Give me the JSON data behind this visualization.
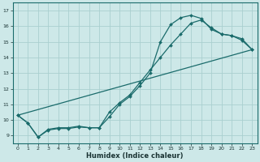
{
  "xlabel": "Humidex (Indice chaleur)",
  "xlim": [
    -0.5,
    23.5
  ],
  "ylim": [
    8.5,
    17.5
  ],
  "xticks": [
    0,
    1,
    2,
    3,
    4,
    5,
    6,
    7,
    8,
    9,
    10,
    11,
    12,
    13,
    14,
    15,
    16,
    17,
    18,
    19,
    20,
    21,
    22,
    23
  ],
  "yticks": [
    9,
    10,
    11,
    12,
    13,
    14,
    15,
    16,
    17
  ],
  "bg_color": "#cde8e8",
  "line_color": "#1a6b6b",
  "grid_color": "#aacfcf",
  "series1_x": [
    0,
    1,
    2,
    3,
    4,
    5,
    6,
    7,
    8,
    9,
    10,
    11,
    12,
    13,
    14,
    15,
    16,
    17,
    18,
    19,
    20,
    21,
    22,
    23
  ],
  "series1_y": [
    10.3,
    9.8,
    8.9,
    9.4,
    9.5,
    9.5,
    9.6,
    9.5,
    9.5,
    10.2,
    11.0,
    11.5,
    12.2,
    13.0,
    15.0,
    16.1,
    16.55,
    16.7,
    16.5,
    15.8,
    15.5,
    15.4,
    15.1,
    14.5
  ],
  "series2_x": [
    0,
    1,
    2,
    3,
    4,
    5,
    6,
    7,
    8,
    9,
    10,
    11,
    12,
    13,
    14,
    15,
    16,
    17,
    18,
    19,
    20,
    21,
    22,
    23
  ],
  "series2_y": [
    10.3,
    9.8,
    8.9,
    9.35,
    9.45,
    9.45,
    9.55,
    9.5,
    9.5,
    10.5,
    11.1,
    11.6,
    12.4,
    13.2,
    14.0,
    14.8,
    15.5,
    16.2,
    16.4,
    15.9,
    15.5,
    15.4,
    15.2,
    14.5
  ],
  "series3_x": [
    0,
    23
  ],
  "series3_y": [
    10.3,
    14.5
  ],
  "marker": "D",
  "markersize": 2.0,
  "linewidth": 0.9,
  "xlabel_fontsize": 6,
  "tick_fontsize": 4.5
}
